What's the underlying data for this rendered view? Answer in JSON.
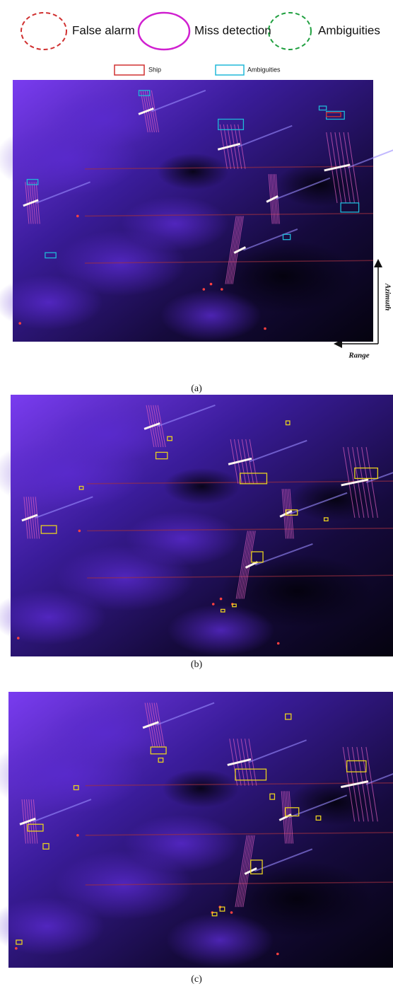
{
  "legend": [
    {
      "label": "False alarm"
    },
    {
      "label": "Miss detection"
    },
    {
      "label": "Ambiguities"
    }
  ],
  "box_legend": [
    {
      "label": "Ship"
    },
    {
      "label": "Ambiguities"
    }
  ],
  "panels": [
    {
      "caption": "(a)"
    },
    {
      "caption": "(b)"
    },
    {
      "caption": "(c)"
    }
  ],
  "axes": {
    "vertical": "Azimuth",
    "horizontal": "Range"
  }
}
